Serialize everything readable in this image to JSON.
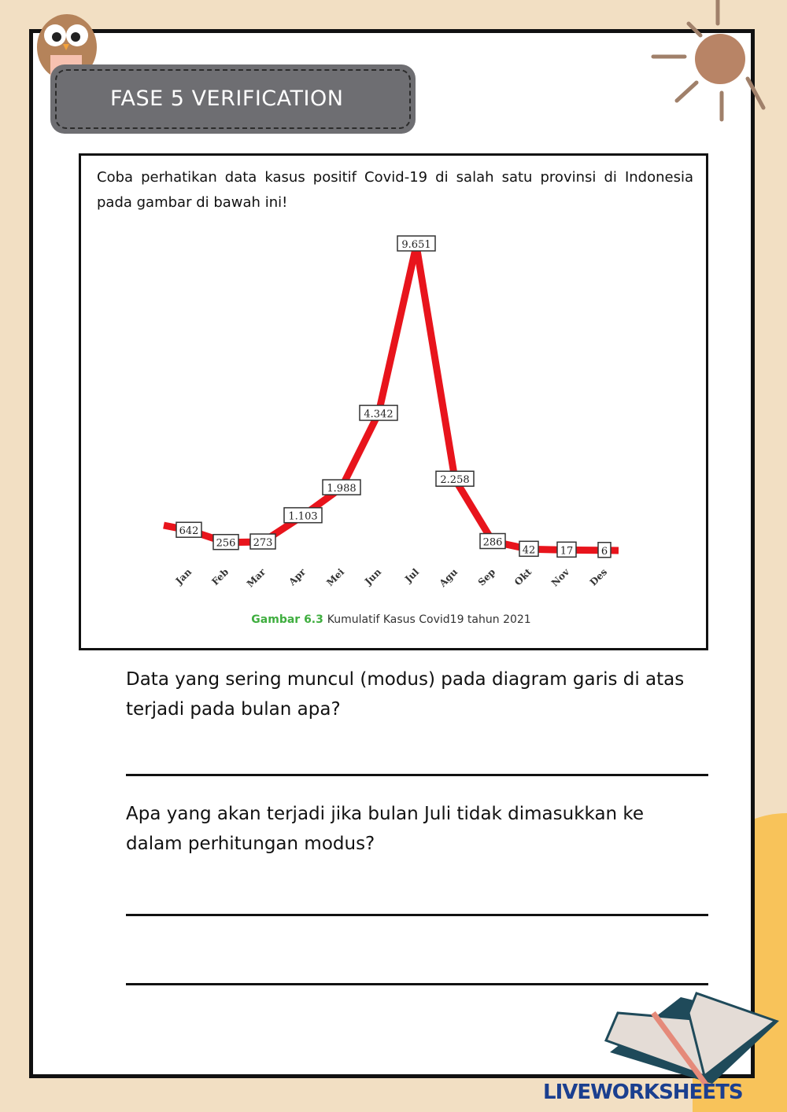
{
  "header": {
    "title": "FASE 5 VERIFICATION"
  },
  "intro": "Coba perhatikan data kasus positif Covid-19 di salah satu provinsi di Indonesia pada gambar di bawah ini!",
  "chart_data": {
    "type": "line",
    "categories": [
      "Jan",
      "Feb",
      "Mar",
      "Apr",
      "Mei",
      "Jun",
      "Jul",
      "Agu",
      "Sep",
      "Okt",
      "Nov",
      "Des"
    ],
    "values": [
      642,
      256,
      273,
      1103,
      1988,
      4342,
      9651,
      2258,
      286,
      42,
      17,
      6
    ],
    "labels": [
      "642",
      "256",
      "273",
      "1.103",
      "1.988",
      "4.342",
      "9.651",
      "2.258",
      "286",
      "42",
      "17",
      "6"
    ],
    "caption_label": "Gambar 6.3",
    "caption_text": "Kumulatif Kasus Covid19 tahun 2021",
    "line_color": "#e8141c"
  },
  "questions": [
    {
      "text": "Data yang sering muncul (modus) pada diagram garis di atas terjadi pada bulan apa?"
    },
    {
      "text": "Apa yang akan terjadi jika bulan Juli tidak dimasukkan ke dalam perhitungan modus?"
    }
  ],
  "watermark": "LIVEWORKSHEETS"
}
